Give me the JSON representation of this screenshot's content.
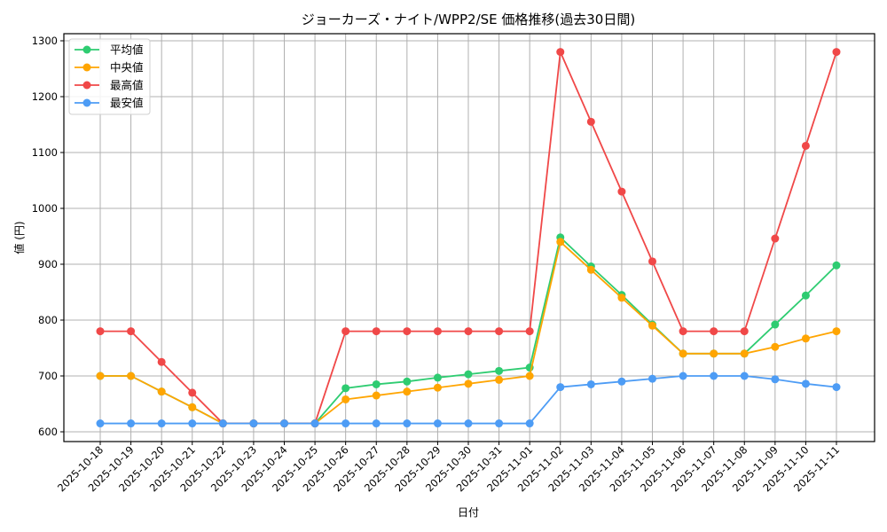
{
  "chart_data": {
    "type": "line",
    "title": "ジョーカーズ・ナイト/WPP2/SE 価格推移(過去30日間)",
    "xlabel": "日付",
    "ylabel": "値 (円)",
    "ylim": [
      585,
      1315
    ],
    "yticks": [
      600,
      700,
      800,
      900,
      1000,
      1100,
      1200,
      1300
    ],
    "grid": true,
    "legend_position": "upper left",
    "categories": [
      "2025-10-18",
      "2025-10-19",
      "2025-10-20",
      "2025-10-21",
      "2025-10-22",
      "2025-10-23",
      "2025-10-24",
      "2025-10-25",
      "2025-10-26",
      "2025-10-27",
      "2025-10-28",
      "2025-10-29",
      "2025-10-30",
      "2025-10-31",
      "2025-11-01",
      "2025-11-02",
      "2025-11-03",
      "2025-11-04",
      "2025-11-05",
      "2025-11-06",
      "2025-11-07",
      "2025-11-08",
      "2025-11-09",
      "2025-11-10",
      "2025-11-11"
    ],
    "series": [
      {
        "name": "平均値",
        "color": "#2ecc71",
        "values": [
          700,
          700,
          672,
          644,
          615,
          615,
          615,
          615,
          678,
          685,
          690,
          697,
          703,
          709,
          715,
          948,
          896,
          845,
          792,
          740,
          740,
          740,
          792,
          844,
          898
        ]
      },
      {
        "name": "中央値",
        "color": "#ffa502",
        "values": [
          700,
          700,
          672,
          644,
          615,
          615,
          615,
          615,
          658,
          665,
          672,
          679,
          686,
          693,
          700,
          940,
          890,
          840,
          790,
          740,
          740,
          740,
          752,
          767,
          780
        ]
      },
      {
        "name": "最高値",
        "color": "#f04848",
        "values": [
          780,
          780,
          725,
          670,
          615,
          615,
          615,
          615,
          780,
          780,
          780,
          780,
          780,
          780,
          780,
          1280,
          1155,
          1030,
          905,
          780,
          780,
          780,
          946,
          1112,
          1280
        ]
      },
      {
        "name": "最安値",
        "color": "#4d9cf5",
        "values": [
          615,
          615,
          615,
          615,
          615,
          615,
          615,
          615,
          615,
          615,
          615,
          615,
          615,
          615,
          615,
          680,
          685,
          690,
          695,
          700,
          700,
          700,
          694,
          686,
          680
        ]
      }
    ]
  }
}
